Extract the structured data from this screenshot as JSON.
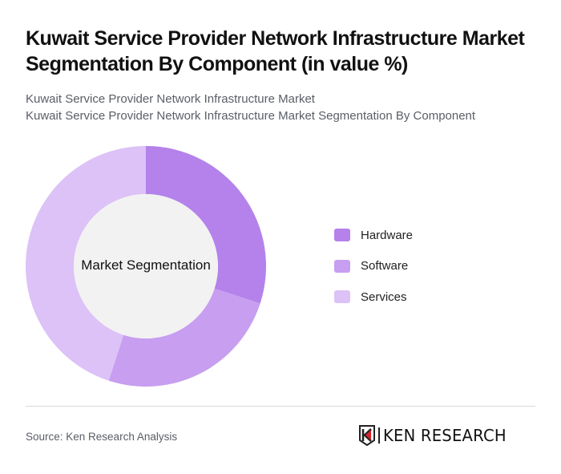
{
  "header": {
    "title": "Kuwait Service Provider Network Infrastructure Market Segmentation By Component (in value %)",
    "subtitle_lines": [
      "Kuwait Service Provider Network Infrastructure Market",
      "Kuwait Service Provider Network Infrastructure Market Segmentation By Component"
    ]
  },
  "chart_data": {
    "type": "pie",
    "variant": "donut",
    "title": "Kuwait Service Provider Network Infrastructure Market Segmentation By Component (in value %)",
    "center_label": "Market Segmentation",
    "categories": [
      "Hardware",
      "Software",
      "Services"
    ],
    "values": [
      30,
      25,
      45
    ],
    "unit": "%",
    "colors": [
      "#b482ea",
      "#c79ef0",
      "#dcc2f7"
    ],
    "start_angle_deg": 0,
    "direction": "clockwise",
    "legend_position": "right"
  },
  "legend": {
    "items": [
      {
        "label": "Hardware",
        "color": "#b482ea"
      },
      {
        "label": "Software",
        "color": "#c79ef0"
      },
      {
        "label": "Services",
        "color": "#dcc2f7"
      }
    ]
  },
  "footer": {
    "source": "Source: Ken Research Analysis",
    "logo_text": "KEN RESEARCH"
  },
  "colors": {
    "center_fill": "#f2f2f2",
    "divider": "#d8d8e0",
    "logo_red": "#d3232a"
  }
}
